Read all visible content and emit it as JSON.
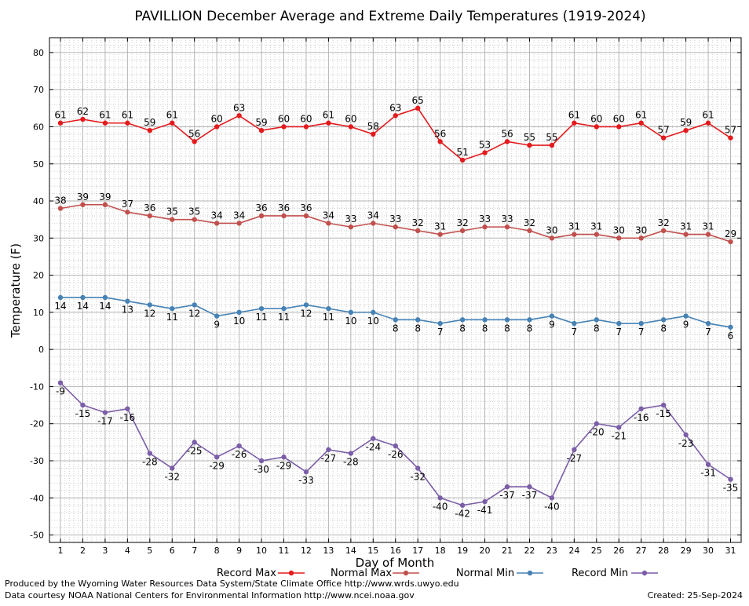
{
  "chart_data": {
    "type": "line",
    "title": "PAVILLION December Average and Extreme Daily Temperatures (1919-2024)",
    "xlabel": "Day of Month",
    "ylabel": "Temperature (F)",
    "x": [
      1,
      2,
      3,
      4,
      5,
      6,
      7,
      8,
      9,
      10,
      11,
      12,
      13,
      14,
      15,
      16,
      17,
      18,
      19,
      20,
      21,
      22,
      23,
      24,
      25,
      26,
      27,
      28,
      29,
      30,
      31
    ],
    "ylim": [
      -52,
      84
    ],
    "yticks": [
      -50,
      -40,
      -30,
      -20,
      -10,
      0,
      10,
      20,
      30,
      40,
      50,
      60,
      70,
      80
    ],
    "grid": true,
    "legend_position": "bottom",
    "series": [
      {
        "name": "Record Max",
        "color": "#e41a1c",
        "values": [
          61,
          62,
          61,
          61,
          59,
          61,
          56,
          60,
          63,
          59,
          60,
          60,
          61,
          60,
          58,
          63,
          65,
          56,
          51,
          53,
          56,
          55,
          55,
          61,
          60,
          60,
          61,
          57,
          59,
          61,
          57
        ]
      },
      {
        "name": "Normal Max",
        "color": "#c0504d",
        "values": [
          38,
          39,
          39,
          37,
          36,
          35,
          35,
          34,
          34,
          36,
          36,
          36,
          34,
          33,
          34,
          33,
          32,
          31,
          32,
          33,
          33,
          32,
          30,
          31,
          31,
          30,
          30,
          32,
          31,
          31,
          29
        ]
      },
      {
        "name": "Normal Min",
        "color": "#4682b4",
        "values": [
          14,
          14,
          14,
          13,
          12,
          11,
          12,
          9,
          10,
          11,
          11,
          12,
          11,
          10,
          10,
          8,
          8,
          7,
          8,
          8,
          8,
          8,
          9,
          7,
          8,
          7,
          7,
          8,
          9,
          7,
          6
        ]
      },
      {
        "name": "Record Min",
        "color": "#7b5ea7",
        "values": [
          -9,
          -15,
          -17,
          -16,
          -28,
          -32,
          -25,
          -29,
          -26,
          -30,
          -29,
          -33,
          -27,
          -28,
          -24,
          -26,
          -32,
          -40,
          -42,
          -41,
          -37,
          -37,
          -40,
          -27,
          -20,
          -21,
          -16,
          -15,
          -23,
          -31,
          -35
        ]
      }
    ]
  },
  "footer": {
    "produced_by": "Produced by the Wyoming Water Resources Data System/State Climate Office http://www.wrds.uwyo.edu",
    "data_courtesy": "Data courtesy NOAA National Centers for Environmental Information http://www.ncei.noaa.gov",
    "created": "Created:  25-Sep-2024"
  }
}
